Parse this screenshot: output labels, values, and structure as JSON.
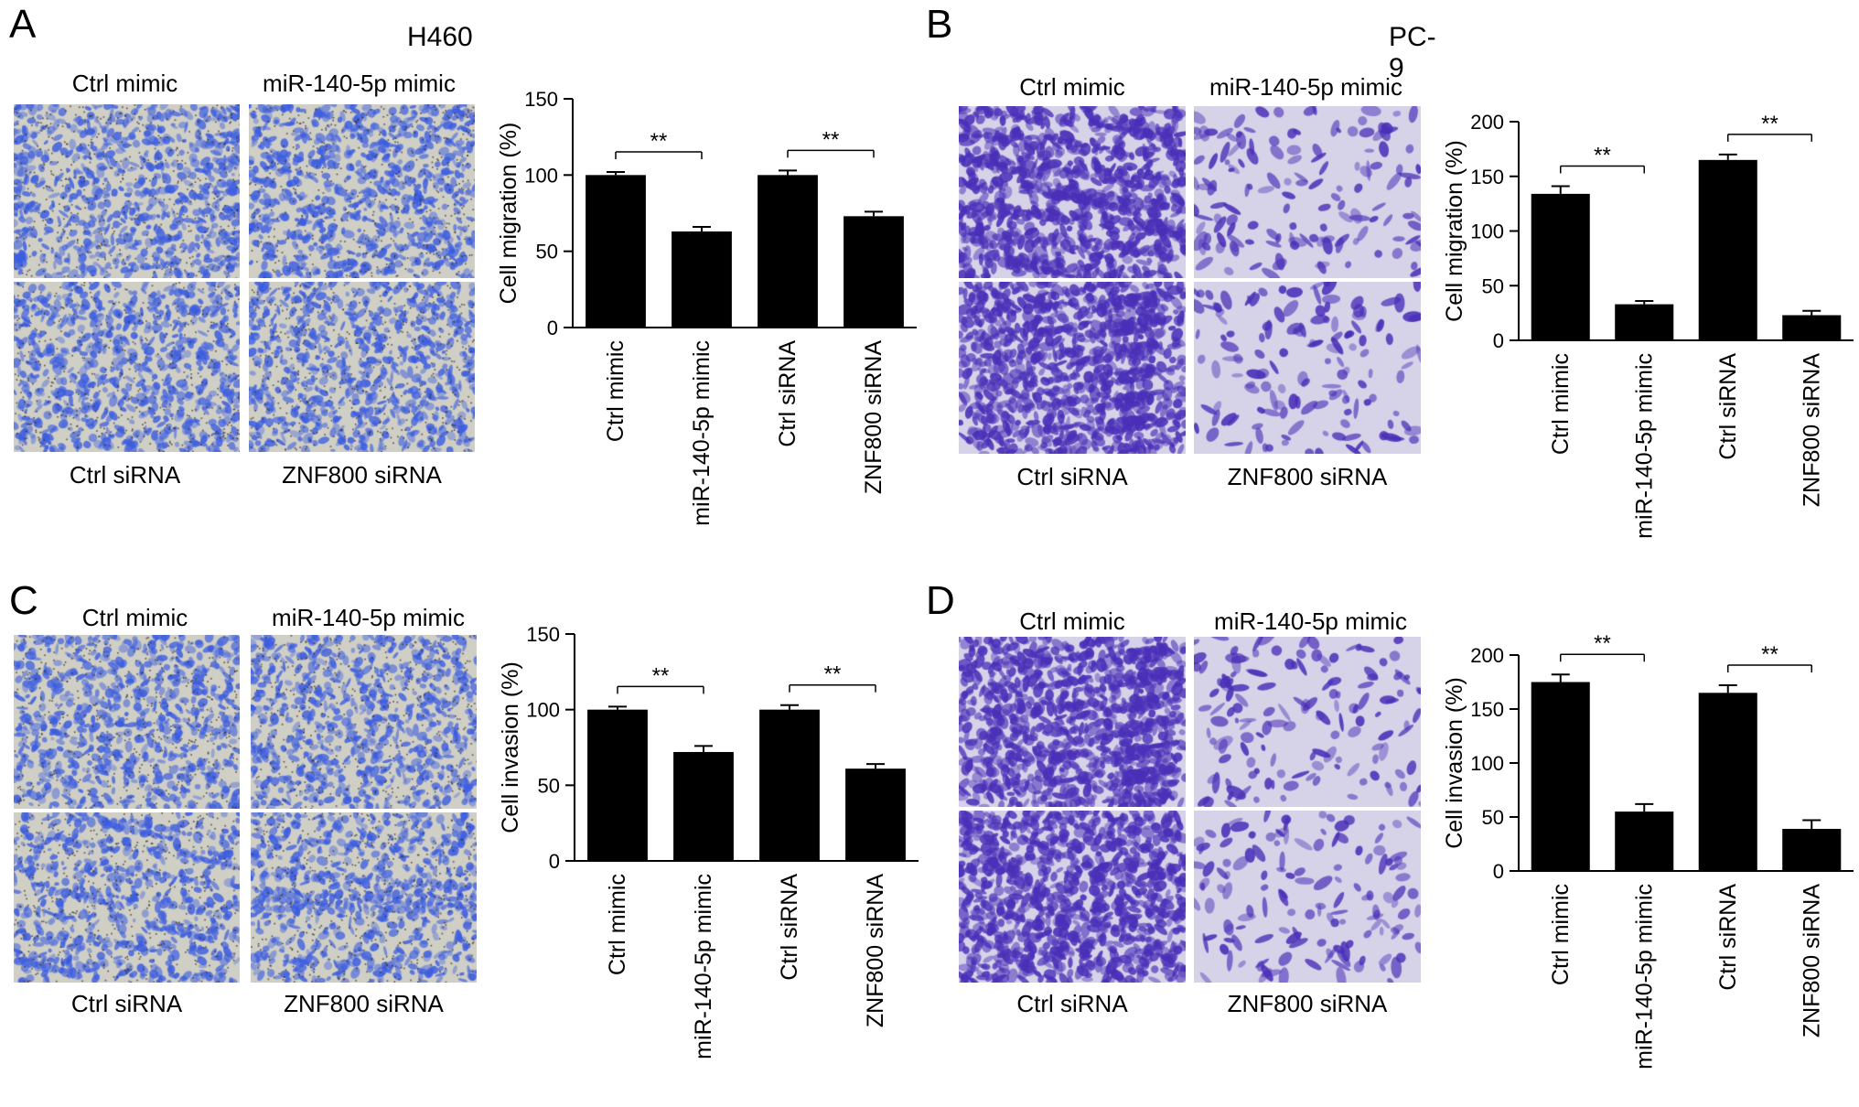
{
  "colors": {
    "bar": "#000000",
    "h460_bg": "#cfcfc6",
    "h460_cell": "#3b5ce0",
    "h460_dot": "#3a3020",
    "pc9_bg": "#d6d3e8",
    "pc9_cell": "#4a2fb8"
  },
  "panels": [
    {
      "letter": "A",
      "cell_line": "H460",
      "image_labels": {
        "top_left": "Ctrl mimic",
        "top_right": "miR-140-5p mimic",
        "bottom_left": "Ctrl siRNA",
        "bottom_right": "ZNF800 siRNA"
      },
      "image_style": "h460"
    },
    {
      "letter": "B",
      "cell_line": "PC-9",
      "image_labels": {
        "top_left": "Ctrl mimic",
        "top_right": "miR-140-5p mimic",
        "bottom_left": "Ctrl siRNA",
        "bottom_right": "ZNF800 siRNA"
      },
      "image_style": "pc9"
    },
    {
      "letter": "C",
      "cell_line": "",
      "image_labels": {
        "top_left": "Ctrl mimic",
        "top_right": "miR-140-5p mimic",
        "bottom_left": "Ctrl siRNA",
        "bottom_right": "ZNF800 siRNA"
      },
      "image_style": "h460"
    },
    {
      "letter": "D",
      "cell_line": "",
      "image_labels": {
        "top_left": "Ctrl mimic",
        "top_right": "miR-140-5p mimic",
        "bottom_left": "Ctrl siRNA",
        "bottom_right": "ZNF800 siRNA"
      },
      "image_style": "pc9"
    }
  ],
  "chart_data": [
    {
      "type": "bar",
      "panel": "A",
      "categories": [
        "Ctrl mimic",
        "miR-140-5p mimic",
        "Ctrl siRNA",
        "ZNF800 siRNA"
      ],
      "values": [
        100,
        63,
        100,
        73
      ],
      "errors": [
        2,
        3,
        3,
        3
      ],
      "ylabel": "Cell migration (%)",
      "ylim": [
        0,
        150
      ],
      "yticks": [
        0,
        50,
        100,
        150
      ],
      "significance": [
        {
          "between": [
            0,
            1
          ],
          "label": "**"
        },
        {
          "between": [
            2,
            3
          ],
          "label": "**"
        }
      ]
    },
    {
      "type": "bar",
      "panel": "B",
      "categories": [
        "Ctrl mimic",
        "miR-140-5p mimic",
        "Ctrl siRNA",
        "ZNF800 siRNA"
      ],
      "values": [
        134,
        33,
        165,
        23
      ],
      "errors": [
        7,
        3,
        5,
        4
      ],
      "ylabel": "Cell migration (%)",
      "ylim": [
        0,
        200
      ],
      "yticks": [
        0,
        50,
        100,
        150,
        200
      ],
      "significance": [
        {
          "between": [
            0,
            1
          ],
          "label": "**"
        },
        {
          "between": [
            2,
            3
          ],
          "label": "**"
        }
      ]
    },
    {
      "type": "bar",
      "panel": "C",
      "categories": [
        "Ctrl mimic",
        "miR-140-5p mimic",
        "Ctrl siRNA",
        "ZNF800 siRNA"
      ],
      "values": [
        100,
        72,
        100,
        61
      ],
      "errors": [
        2,
        4,
        3,
        3
      ],
      "ylabel": "Cell invasion (%)",
      "ylim": [
        0,
        150
      ],
      "yticks": [
        0,
        50,
        100,
        150
      ],
      "significance": [
        {
          "between": [
            0,
            1
          ],
          "label": "**"
        },
        {
          "between": [
            2,
            3
          ],
          "label": "**"
        }
      ]
    },
    {
      "type": "bar",
      "panel": "D",
      "categories": [
        "Ctrl mimic",
        "miR-140-5p mimic",
        "Ctrl siRNA",
        "ZNF800 siRNA"
      ],
      "values": [
        175,
        55,
        165,
        39
      ],
      "errors": [
        7,
        7,
        7,
        8
      ],
      "ylabel": "Cell invasion (%)",
      "ylim": [
        0,
        200
      ],
      "yticks": [
        0,
        50,
        100,
        150,
        200
      ],
      "significance": [
        {
          "between": [
            0,
            1
          ],
          "label": "**"
        },
        {
          "between": [
            2,
            3
          ],
          "label": "**"
        }
      ]
    }
  ]
}
